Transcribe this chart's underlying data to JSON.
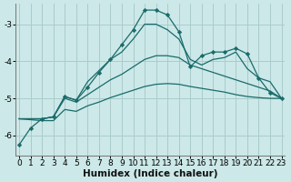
{
  "xlabel": "Humidex (Indice chaleur)",
  "background_color": "#cce8e8",
  "grid_color": "#aacccc",
  "line_color": "#1a6b6b",
  "series": [
    {
      "x": [
        0,
        1,
        2,
        3,
        4,
        5,
        6,
        7,
        8,
        9,
        10,
        11,
        12,
        13,
        14,
        15,
        16,
        17,
        18,
        19,
        20,
        21,
        22,
        23
      ],
      "y": [
        -6.25,
        -5.8,
        -5.55,
        -5.5,
        -4.95,
        -5.05,
        -4.7,
        -4.3,
        -3.95,
        -3.55,
        -3.15,
        -2.62,
        -2.62,
        -2.75,
        -3.2,
        -4.15,
        -3.85,
        -3.75,
        -3.75,
        -3.65,
        -3.8,
        -4.45,
        -4.85,
        -5.0
      ],
      "with_markers": true
    },
    {
      "x": [
        0,
        2,
        3,
        4,
        5,
        6,
        7,
        8,
        9,
        10,
        11,
        12,
        13,
        14,
        15,
        16,
        17,
        18,
        19,
        20,
        21,
        22,
        23
      ],
      "y": [
        -5.55,
        -5.55,
        -5.5,
        -4.95,
        -5.05,
        -4.55,
        -4.25,
        -3.95,
        -3.75,
        -3.4,
        -3.0,
        -3.0,
        -3.15,
        -3.4,
        -3.95,
        -4.1,
        -3.95,
        -3.9,
        -3.75,
        -4.2,
        -4.45,
        -4.55,
        -5.0
      ],
      "with_markers": false
    },
    {
      "x": [
        0,
        2,
        3,
        4,
        5,
        6,
        7,
        8,
        9,
        10,
        11,
        12,
        13,
        14,
        15,
        16,
        17,
        18,
        19,
        20,
        21,
        22,
        23
      ],
      "y": [
        -5.55,
        -5.55,
        -5.5,
        -5.0,
        -5.1,
        -4.9,
        -4.7,
        -4.5,
        -4.35,
        -4.15,
        -3.95,
        -3.85,
        -3.85,
        -3.9,
        -4.1,
        -4.2,
        -4.3,
        -4.4,
        -4.5,
        -4.6,
        -4.7,
        -4.8,
        -5.0
      ],
      "with_markers": false
    },
    {
      "x": [
        0,
        2,
        3,
        4,
        5,
        6,
        7,
        8,
        9,
        10,
        11,
        12,
        13,
        14,
        15,
        16,
        17,
        18,
        19,
        20,
        21,
        22,
        23
      ],
      "y": [
        -5.55,
        -5.6,
        -5.6,
        -5.3,
        -5.35,
        -5.2,
        -5.1,
        -4.98,
        -4.88,
        -4.78,
        -4.68,
        -4.62,
        -4.6,
        -4.62,
        -4.68,
        -4.73,
        -4.78,
        -4.83,
        -4.9,
        -4.95,
        -4.98,
        -5.0,
        -5.0
      ],
      "with_markers": false
    }
  ],
  "xlim": [
    -0.3,
    23.3
  ],
  "ylim": [
    -6.55,
    -2.45
  ],
  "yticks": [
    -6,
    -5,
    -4,
    -3
  ],
  "xticks": [
    0,
    1,
    2,
    3,
    4,
    5,
    6,
    7,
    8,
    9,
    10,
    11,
    12,
    13,
    14,
    15,
    16,
    17,
    18,
    19,
    20,
    21,
    22,
    23
  ],
  "xlabel_fontsize": 7.5,
  "tick_fontsize": 6.5
}
